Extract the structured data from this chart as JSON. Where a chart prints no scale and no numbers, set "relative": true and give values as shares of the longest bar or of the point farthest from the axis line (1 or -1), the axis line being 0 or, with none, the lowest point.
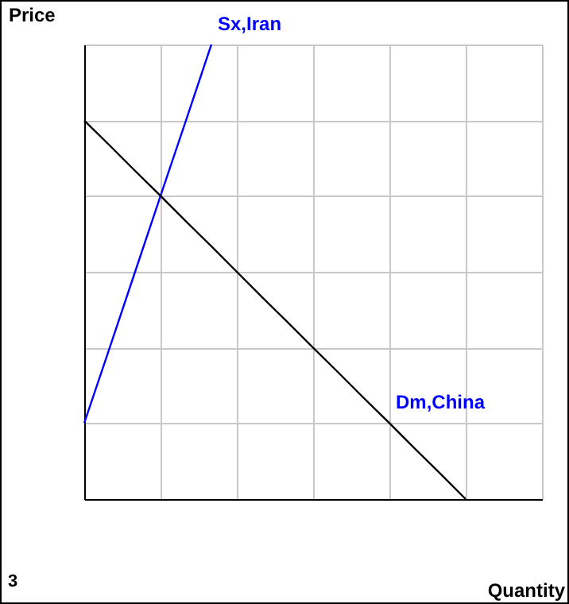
{
  "chart_data": {
    "type": "line",
    "relative": true,
    "xlabel": "Quantity",
    "ylabel": "Price",
    "categories": [
      null,
      null,
      null,
      null,
      null,
      null,
      null,
      null,
      null,
      null,
      null,
      null,
      null,
      null,
      null,
      null,
      null,
      null,
      null
    ],
    "grid": true,
    "marker": "none",
    "line_style": "solid",
    "series": [
      {
        "name": "Sx,Iran",
        "color": "#0000ff",
        "values": [
          0.167,
          0.333,
          0.5,
          0.667,
          0.833,
          1,
          null,
          null,
          null,
          null,
          null,
          null,
          null,
          null,
          null,
          null,
          null,
          null,
          null
        ]
      },
      {
        "name": "Dm,China",
        "color": "#000000",
        "values": [
          0.833,
          0.778,
          0.722,
          0.667,
          0.611,
          0.556,
          0.5,
          0.444,
          0.389,
          0.333,
          0.278,
          0.222,
          0.167,
          0.111,
          0.056,
          0,
          null,
          null,
          null
        ]
      }
    ],
    "annotations": [
      "3"
    ]
  }
}
